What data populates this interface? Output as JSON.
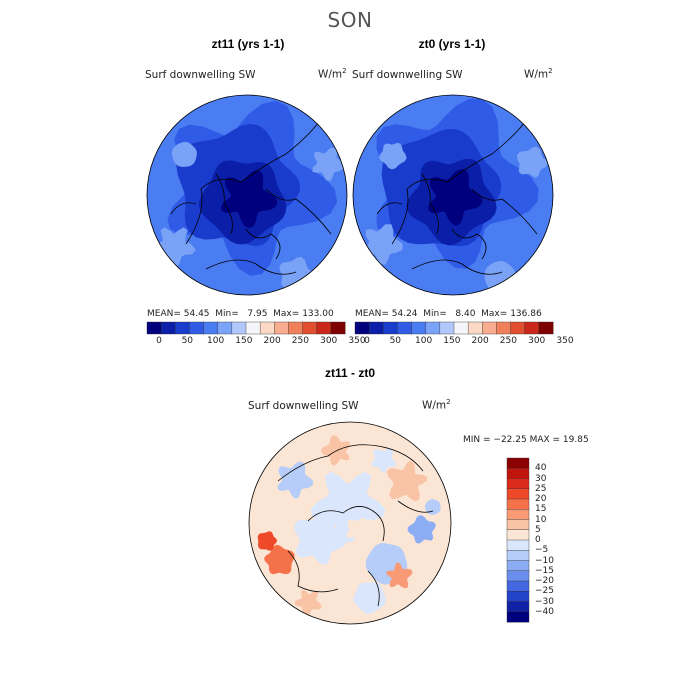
{
  "season": "SON",
  "chart_data": [
    {
      "type": "heatmap",
      "title": "zt11 (yrs 1-1)",
      "variable": "Surf downwelling SW",
      "units": "W/m",
      "units_exp": "2",
      "stats": {
        "mean_label": "MEAN=",
        "mean": "54.45",
        "min_label": "Min=",
        "min": "7.95",
        "max_label": "Max=",
        "max": "133.00"
      },
      "colorbar": {
        "ticks": [
          "0",
          "50",
          "100",
          "150",
          "200",
          "250",
          "300",
          "350"
        ],
        "colors": [
          "#00007f",
          "#0a1ea8",
          "#1a3ccc",
          "#2f5be6",
          "#4a7cf2",
          "#7aa2f7",
          "#b0c8f9",
          "#f4f6fb",
          "#fbd9c4",
          "#f7ad8e",
          "#f07f5c",
          "#e24e30",
          "#c8271a",
          "#7f0000"
        ]
      }
    },
    {
      "type": "heatmap",
      "title": "zt0 (yrs 1-1)",
      "variable": "Surf downwelling SW",
      "units": "W/m",
      "units_exp": "2",
      "stats": {
        "mean_label": "MEAN=",
        "mean": "54.24",
        "min_label": "Min=",
        "min": "8.40",
        "max_label": "Max=",
        "max": "136.86"
      },
      "colorbar": {
        "ticks": [
          "0",
          "50",
          "100",
          "150",
          "200",
          "250",
          "300",
          "350"
        ],
        "colors": [
          "#00007f",
          "#0a1ea8",
          "#1a3ccc",
          "#2f5be6",
          "#4a7cf2",
          "#7aa2f7",
          "#b0c8f9",
          "#f4f6fb",
          "#fbd9c4",
          "#f7ad8e",
          "#f07f5c",
          "#e24e30",
          "#c8271a",
          "#7f0000"
        ]
      }
    },
    {
      "type": "heatmap",
      "title": "zt11 - zt0",
      "variable": "Surf downwelling SW",
      "units": "W/m",
      "units_exp": "2",
      "stats_line": "MIN = −22.25  MAX =  19.85",
      "colorbar": {
        "ticks": [
          "40",
          "30",
          "25",
          "20",
          "15",
          "10",
          "5",
          "0",
          "−5",
          "−10",
          "−15",
          "−20",
          "−25",
          "−30",
          "−40"
        ],
        "colors": [
          "#8b0000",
          "#c1140c",
          "#dc2a1a",
          "#ee4a2a",
          "#f5714a",
          "#f89a76",
          "#f9c3a6",
          "#fbe6d6",
          "#d9e6fb",
          "#b5cdf8",
          "#8cadf3",
          "#6a8eee",
          "#4468e2",
          "#2242c8",
          "#0f22a6",
          "#00007f"
        ]
      }
    }
  ]
}
